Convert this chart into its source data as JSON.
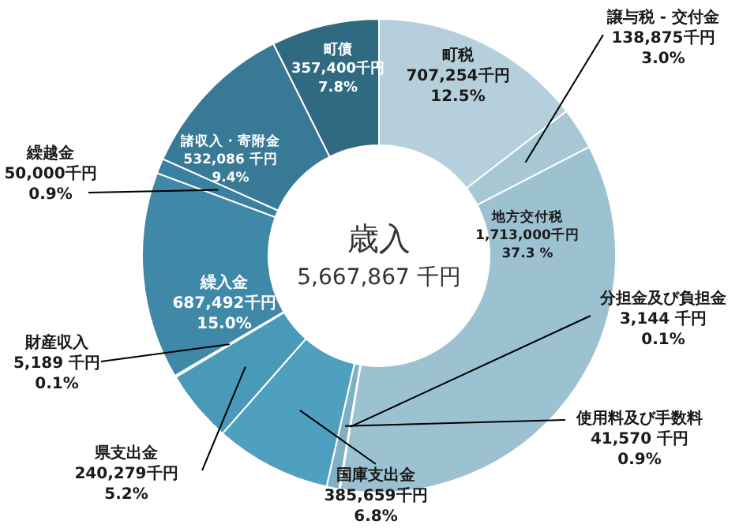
{
  "chart_data": {
    "type": "donut",
    "title": "歳入",
    "subtitle": "5,667,867 千円",
    "categories": [
      "町税",
      "譲与税 - 交付金",
      "地方交付税",
      "分担金及び負担金",
      "使用料及び手数料",
      "国庫支出金",
      "県支出金",
      "財産収入",
      "繰入金",
      "繰越金",
      "諸収入・寄附金",
      "町債"
    ],
    "values": [
      707254,
      138875,
      1713000,
      3144,
      41570,
      385659,
      240279,
      5189,
      687492,
      50000,
      532086,
      357400
    ],
    "value_labels": [
      "707,254千円\n12.5%",
      "138,875千円\n3.0%",
      "1,713,000千円\n37.3 %",
      "3,144 千円\n0.1%",
      "41,570  千円\n0.9%",
      "385,659千円\n6.8%",
      "240,279千円\n5.2%",
      "5,189 千円\n0.1%",
      "687,492千円\n15.0%",
      "50,000千円\n0.9%",
      "532,086 千円\n9.4%",
      "357,400千円\n7.8%"
    ],
    "colors": [
      "#b5d0dc",
      "#a8c7d5",
      "#9cc2d2",
      "#8ab6c9",
      "#7fb0c4",
      "#4fa0bf",
      "#4999b8",
      "#4390ae",
      "#3f88a7",
      "#3b80a0",
      "#387a96",
      "#2f6a80"
    ]
  }
}
